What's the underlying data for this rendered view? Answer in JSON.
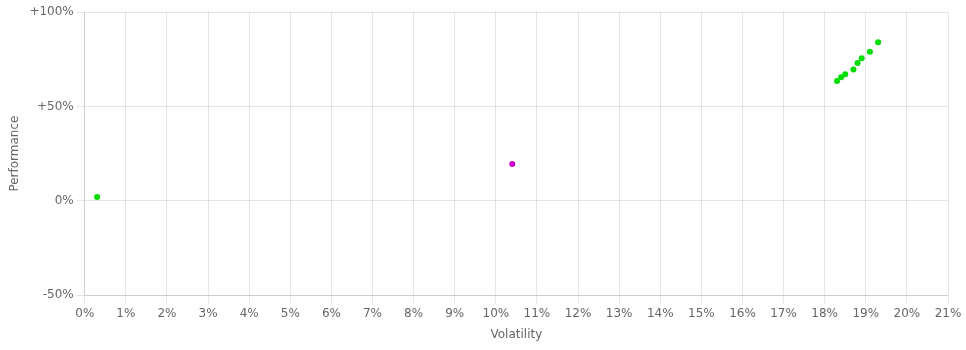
{
  "chart_data": {
    "type": "scatter",
    "xlabel": "Volatility",
    "ylabel": "Performance",
    "series": [
      {
        "color": "#00dd00",
        "x": [
          0.003,
          0.183,
          0.184,
          0.185,
          0.187,
          0.188,
          0.189,
          0.191,
          0.193
        ],
        "values": [
          0.02,
          0.635,
          0.655,
          0.67,
          0.695,
          0.73,
          0.755,
          0.79,
          0.84
        ]
      },
      {
        "color": "#cc00cc",
        "x": [
          0.104
        ],
        "values": [
          0.195
        ]
      }
    ],
    "xlim": [
      0,
      0.21
    ],
    "ylim": [
      -0.5,
      1.0
    ],
    "xticks": [
      {
        "value": 0.0,
        "label": "0%"
      },
      {
        "value": 0.01,
        "label": "1%"
      },
      {
        "value": 0.02,
        "label": "2%"
      },
      {
        "value": 0.03,
        "label": "3%"
      },
      {
        "value": 0.04,
        "label": "4%"
      },
      {
        "value": 0.05,
        "label": "5%"
      },
      {
        "value": 0.06,
        "label": "6%"
      },
      {
        "value": 0.07,
        "label": "7%"
      },
      {
        "value": 0.08,
        "label": "8%"
      },
      {
        "value": 0.09,
        "label": "9%"
      },
      {
        "value": 0.1,
        "label": "10%"
      },
      {
        "value": 0.11,
        "label": "11%"
      },
      {
        "value": 0.12,
        "label": "12%"
      },
      {
        "value": 0.13,
        "label": "13%"
      },
      {
        "value": 0.14,
        "label": "14%"
      },
      {
        "value": 0.15,
        "label": "15%"
      },
      {
        "value": 0.16,
        "label": "16%"
      },
      {
        "value": 0.17,
        "label": "17%"
      },
      {
        "value": 0.18,
        "label": "18%"
      },
      {
        "value": 0.19,
        "label": "19%"
      },
      {
        "value": 0.2,
        "label": "20%"
      },
      {
        "value": 0.21,
        "label": "21%"
      }
    ],
    "yticks": [
      {
        "value": -0.5,
        "label": "-50%"
      },
      {
        "value": 0.0,
        "label": "0%"
      },
      {
        "value": 0.5,
        "label": "+50%"
      },
      {
        "value": 1.0,
        "label": "+100%"
      }
    ],
    "grid": true
  }
}
